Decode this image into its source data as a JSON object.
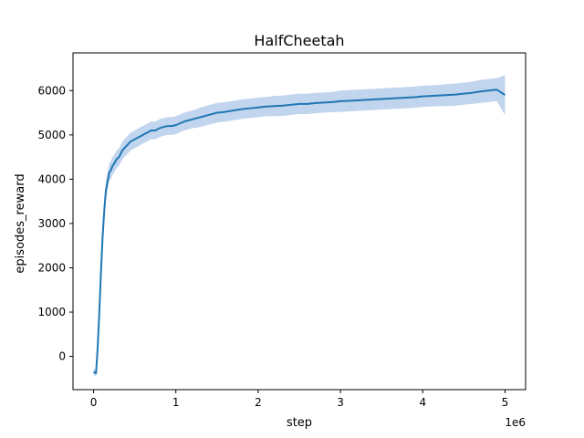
{
  "chart_data": {
    "type": "line",
    "title": "HalfCheetah",
    "xlabel": "step",
    "ylabel": "episodes_reward",
    "x_offset_label": "1e6",
    "x_ticks": [
      0,
      1,
      2,
      3,
      4,
      5
    ],
    "x_tick_labels": [
      "0",
      "1",
      "2",
      "3",
      "4",
      "5"
    ],
    "y_ticks": [
      0,
      1000,
      2000,
      3000,
      4000,
      5000,
      6000
    ],
    "y_tick_labels": [
      "0",
      "1000",
      "2000",
      "3000",
      "4000",
      "5000",
      "6000"
    ],
    "xlim": [
      -0.25,
      5.25
    ],
    "ylim": [
      -750,
      6850
    ],
    "grid": false,
    "legend": "none",
    "series": [
      {
        "color": "#1f77b4",
        "band_color": "#aec7e8",
        "x": [
          0.0,
          0.03,
          0.05,
          0.07,
          0.09,
          0.11,
          0.13,
          0.15,
          0.17,
          0.19,
          0.21,
          0.23,
          0.25,
          0.28,
          0.31,
          0.35,
          0.4,
          0.45,
          0.5,
          0.55,
          0.6,
          0.65,
          0.7,
          0.75,
          0.8,
          0.85,
          0.9,
          0.95,
          1.0,
          1.1,
          1.2,
          1.3,
          1.4,
          1.5,
          1.6,
          1.7,
          1.8,
          1.9,
          2.0,
          2.1,
          2.2,
          2.3,
          2.4,
          2.5,
          2.6,
          2.7,
          2.8,
          2.9,
          3.0,
          3.1,
          3.2,
          3.3,
          3.4,
          3.5,
          3.6,
          3.7,
          3.8,
          3.9,
          4.0,
          4.1,
          4.2,
          4.3,
          4.4,
          4.5,
          4.6,
          4.7,
          4.8,
          4.9,
          5.0
        ],
        "y": [
          -350,
          -380,
          200,
          1000,
          1900,
          2700,
          3300,
          3750,
          3950,
          4150,
          4200,
          4300,
          4350,
          4450,
          4500,
          4650,
          4750,
          4850,
          4900,
          4950,
          5000,
          5050,
          5100,
          5100,
          5150,
          5180,
          5200,
          5200,
          5220,
          5300,
          5350,
          5400,
          5450,
          5500,
          5520,
          5550,
          5580,
          5600,
          5620,
          5640,
          5650,
          5660,
          5680,
          5700,
          5700,
          5720,
          5730,
          5740,
          5760,
          5770,
          5780,
          5790,
          5800,
          5810,
          5820,
          5830,
          5840,
          5850,
          5870,
          5880,
          5890,
          5900,
          5910,
          5930,
          5950,
          5980,
          6000,
          6020,
          5900
        ],
        "y_lower": [
          -420,
          -450,
          50,
          800,
          1650,
          2450,
          3050,
          3550,
          3750,
          3950,
          4000,
          4100,
          4150,
          4250,
          4300,
          4450,
          4550,
          4650,
          4700,
          4750,
          4800,
          4850,
          4900,
          4900,
          4950,
          4980,
          5000,
          5000,
          5020,
          5100,
          5150,
          5180,
          5230,
          5280,
          5300,
          5330,
          5360,
          5380,
          5400,
          5420,
          5420,
          5430,
          5450,
          5470,
          5470,
          5490,
          5500,
          5510,
          5520,
          5530,
          5540,
          5550,
          5560,
          5570,
          5580,
          5590,
          5600,
          5610,
          5630,
          5640,
          5650,
          5650,
          5660,
          5680,
          5700,
          5720,
          5740,
          5760,
          5450
        ],
        "y_upper": [
          -280,
          -300,
          350,
          1200,
          2150,
          2950,
          3550,
          3950,
          4150,
          4350,
          4400,
          4500,
          4550,
          4650,
          4700,
          4850,
          4950,
          5050,
          5100,
          5150,
          5200,
          5250,
          5300,
          5300,
          5350,
          5380,
          5400,
          5400,
          5420,
          5500,
          5550,
          5620,
          5670,
          5720,
          5740,
          5770,
          5800,
          5820,
          5840,
          5860,
          5880,
          5890,
          5910,
          5930,
          5930,
          5950,
          5960,
          5970,
          6000,
          6010,
          6020,
          6030,
          6040,
          6050,
          6060,
          6070,
          6080,
          6090,
          6110,
          6120,
          6130,
          6150,
          6160,
          6180,
          6200,
          6240,
          6260,
          6280,
          6350
        ]
      }
    ]
  }
}
